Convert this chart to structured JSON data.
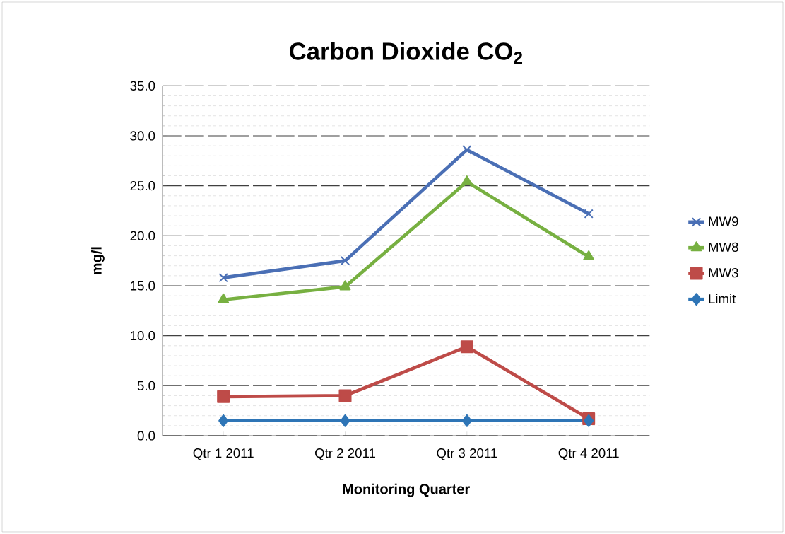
{
  "chart_data": {
    "type": "line",
    "title": "Carbon Dioxide CO$_{2}$",
    "xlabel": "Monitoring Quarter",
    "ylabel": "mg/l",
    "categories": [
      "Qtr 1 2011",
      "Qtr 2 2011",
      "Qtr 3 2011",
      "Qtr 4 2011"
    ],
    "series": [
      {
        "name": "MW9",
        "color": "#4a6fb5",
        "marker": "cross",
        "values": [
          15.8,
          17.5,
          28.6,
          22.2
        ]
      },
      {
        "name": "MW8",
        "color": "#77b041",
        "marker": "triangle",
        "values": [
          13.6,
          14.9,
          25.4,
          17.9
        ]
      },
      {
        "name": "MW3",
        "color": "#be4b48",
        "marker": "square",
        "values": [
          3.9,
          4.0,
          8.9,
          1.7
        ]
      },
      {
        "name": "Limit",
        "color": "#2e75b6",
        "marker": "diamond",
        "values": [
          1.5,
          1.5,
          1.5,
          1.5
        ]
      }
    ],
    "ylim": [
      0,
      35
    ],
    "yticks": [
      {
        "value": 0,
        "label": "0.0"
      },
      {
        "value": 5,
        "label": "5.0"
      },
      {
        "value": 10,
        "label": "10.0"
      },
      {
        "value": 15,
        "label": "15.0"
      },
      {
        "value": 20,
        "label": "20.0"
      },
      {
        "value": 25,
        "label": "25.0"
      },
      {
        "value": 30,
        "label": "30.0"
      },
      {
        "value": 35,
        "label": "35.0"
      }
    ],
    "grid": "y",
    "legend": "right",
    "line_style": "solid"
  }
}
